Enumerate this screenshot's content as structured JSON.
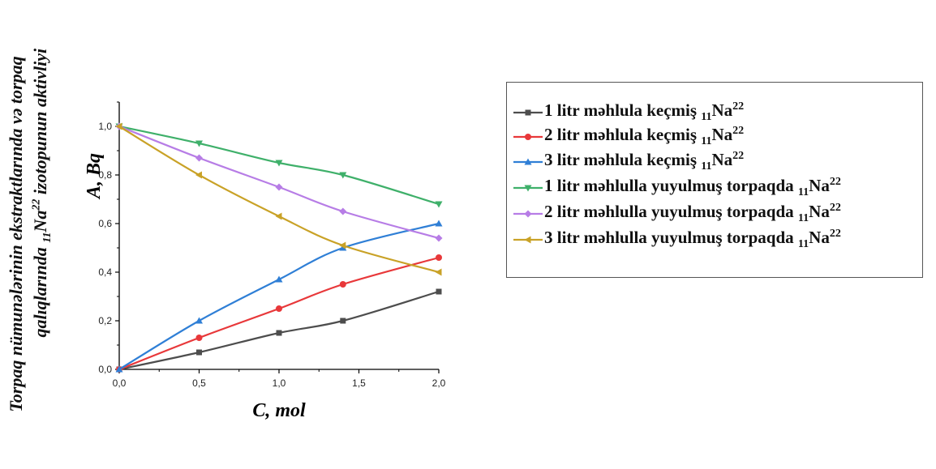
{
  "y_title_outer": {
    "line1": "Torpaq nümunələrinin ekstraktlarında və torpaq",
    "line2_pre": "qalıqlarında ",
    "line2_sub": "11",
    "line2_mid": "Na",
    "line2_sup": "22",
    "line2_post": " izotopunun aktivliyi"
  },
  "chart_data": {
    "type": "line",
    "title": "",
    "xlabel": "C, mol",
    "ylabel": "A, Bq",
    "xlim": [
      0,
      2.0
    ],
    "ylim": [
      0,
      1.1
    ],
    "xticks": [
      "0,0",
      "0,5",
      "1,0",
      "1,5",
      "2,0"
    ],
    "yticks": [
      "0,0",
      "0,2",
      "0,4",
      "0,6",
      "0,8",
      "1,0"
    ],
    "legend_position": "right-outside",
    "series": [
      {
        "name_pre": "1 litr məhlula keçmiş ",
        "name_sub": "11",
        "name_el": "Na",
        "name_sup": "22",
        "color": "#4d4d4d",
        "marker": "square",
        "x": [
          0,
          0.5,
          1.0,
          1.4,
          2.0
        ],
        "y": [
          0.0,
          0.07,
          0.15,
          0.2,
          0.32
        ]
      },
      {
        "name_pre": "2 litr məhlula keçmiş ",
        "name_sub": "11",
        "name_el": "Na",
        "name_sup": "22",
        "color": "#e8383a",
        "marker": "circle",
        "x": [
          0,
          0.5,
          1.0,
          1.4,
          2.0
        ],
        "y": [
          0.0,
          0.13,
          0.25,
          0.35,
          0.46
        ]
      },
      {
        "name_pre": "3 litr məhlula keçmiş ",
        "name_sub": "11",
        "name_el": "Na",
        "name_sup": "22",
        "color": "#2f7fd6",
        "marker": "triangle-up",
        "x": [
          0,
          0.5,
          1.0,
          1.4,
          2.0
        ],
        "y": [
          0.0,
          0.2,
          0.37,
          0.5,
          0.6
        ]
      },
      {
        "name_pre": "1 litr məhlulla yuyulmuş torpaqda ",
        "name_sub": "11",
        "name_el": "Na",
        "name_sup": "22",
        "color": "#3fb06a",
        "marker": "triangle-down",
        "x": [
          0,
          0.5,
          1.0,
          1.4,
          2.0
        ],
        "y": [
          1.0,
          0.93,
          0.85,
          0.8,
          0.68
        ]
      },
      {
        "name_pre": "2 litr məhlulla yuyulmuş torpaqda ",
        "name_sub": "11",
        "name_el": "Na",
        "name_sup": "22",
        "color": "#b77de6",
        "marker": "diamond",
        "x": [
          0,
          0.5,
          1.0,
          1.4,
          2.0
        ],
        "y": [
          1.0,
          0.87,
          0.75,
          0.65,
          0.54
        ]
      },
      {
        "name_pre": "3 litr məhlulla yuyulmuş torpaqda ",
        "name_sub": "11",
        "name_el": "Na",
        "name_sup": "22",
        "color": "#c9a227",
        "marker": "triangle-left",
        "x": [
          0,
          0.5,
          1.0,
          1.4,
          2.0
        ],
        "y": [
          1.0,
          0.8,
          0.63,
          0.51,
          0.4
        ]
      }
    ]
  }
}
